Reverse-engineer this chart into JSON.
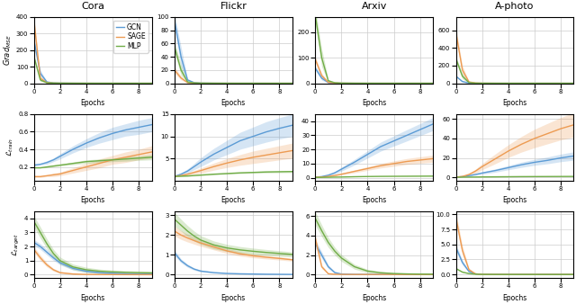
{
  "datasets": [
    "Cora",
    "Flickr",
    "Arxiv",
    "A-photo"
  ],
  "models": [
    "GCN",
    "SAGE",
    "MLP"
  ],
  "colors": [
    "#5B9BD5",
    "#ED9B52",
    "#70AD47"
  ],
  "epochs": [
    0,
    0.5,
    1,
    1.5,
    2,
    3,
    4,
    5,
    6,
    7,
    8,
    9
  ],
  "grad_mse": {
    "Cora": {
      "GCN": {
        "mean": [
          265,
          60,
          8,
          2,
          1,
          0.4,
          0.2,
          0.1,
          0.05,
          0.03,
          0.02,
          0.01
        ],
        "std": [
          15,
          20,
          4,
          1,
          0.5,
          0.2,
          0.1,
          0.05,
          0.02,
          0.01,
          0.01,
          0.005
        ]
      },
      "SAGE": {
        "mean": [
          390,
          30,
          4,
          1,
          0.5,
          0.2,
          0.1,
          0.05,
          0.03,
          0.02,
          0.01,
          0.008
        ],
        "std": [
          30,
          15,
          2,
          0.5,
          0.3,
          0.1,
          0.05,
          0.03,
          0.02,
          0.01,
          0.005,
          0.003
        ]
      },
      "MLP": {
        "mean": [
          165,
          20,
          3,
          1,
          0.5,
          0.2,
          0.1,
          0.05,
          0.03,
          0.02,
          0.01,
          0.008
        ],
        "std": [
          10,
          8,
          1,
          0.5,
          0.3,
          0.1,
          0.05,
          0.03,
          0.02,
          0.01,
          0.005,
          0.003
        ]
      },
      "ylim": [
        0,
        400
      ]
    },
    "Flickr": {
      "GCN": {
        "mean": [
          95,
          40,
          5,
          1,
          0.3,
          0.1,
          0.05,
          0.03,
          0.02,
          0.01,
          0.008,
          0.005
        ],
        "std": [
          10,
          15,
          2,
          0.5,
          0.15,
          0.05,
          0.02,
          0.01,
          0.01,
          0.005,
          0.003,
          0.002
        ]
      },
      "SAGE": {
        "mean": [
          20,
          8,
          1,
          0.3,
          0.1,
          0.05,
          0.02,
          0.01,
          0.008,
          0.005,
          0.003,
          0.002
        ],
        "std": [
          5,
          3,
          0.5,
          0.1,
          0.05,
          0.02,
          0.01,
          0.005,
          0.003,
          0.002,
          0.001,
          0.001
        ]
      },
      "MLP": {
        "mean": [
          55,
          20,
          2,
          0.5,
          0.15,
          0.05,
          0.02,
          0.01,
          0.008,
          0.005,
          0.003,
          0.002
        ],
        "std": [
          8,
          8,
          1,
          0.2,
          0.08,
          0.02,
          0.01,
          0.005,
          0.003,
          0.002,
          0.001,
          0.001
        ]
      },
      "ylim": [
        0,
        100
      ]
    },
    "Arxiv": {
      "GCN": {
        "mean": [
          60,
          20,
          3,
          0.8,
          0.3,
          0.1,
          0.05,
          0.03,
          0.02,
          0.01,
          0.008,
          0.005
        ],
        "std": [
          8,
          8,
          1.5,
          0.4,
          0.15,
          0.05,
          0.02,
          0.01,
          0.01,
          0.005,
          0.003,
          0.002
        ]
      },
      "SAGE": {
        "mean": [
          95,
          30,
          4,
          1,
          0.4,
          0.15,
          0.08,
          0.04,
          0.02,
          0.01,
          0.008,
          0.005
        ],
        "std": [
          10,
          10,
          2,
          0.5,
          0.2,
          0.08,
          0.04,
          0.02,
          0.01,
          0.005,
          0.003,
          0.002
        ]
      },
      "MLP": {
        "mean": [
          270,
          100,
          10,
          2,
          0.5,
          0.15,
          0.05,
          0.02,
          0.01,
          0.008,
          0.005,
          0.003
        ],
        "std": [
          30,
          35,
          5,
          1,
          0.25,
          0.08,
          0.02,
          0.01,
          0.005,
          0.003,
          0.002,
          0.001
        ]
      },
      "ylim": [
        0,
        260
      ]
    },
    "A-photo": {
      "GCN": {
        "mean": [
          80,
          20,
          2,
          0.5,
          0.2,
          0.08,
          0.04,
          0.02,
          0.01,
          0.008,
          0.005,
          0.003
        ],
        "std": [
          10,
          8,
          1,
          0.25,
          0.1,
          0.04,
          0.02,
          0.01,
          0.005,
          0.003,
          0.002,
          0.001
        ]
      },
      "SAGE": {
        "mean": [
          580,
          150,
          15,
          3,
          1,
          0.3,
          0.1,
          0.05,
          0.02,
          0.01,
          0.008,
          0.005
        ],
        "std": [
          60,
          50,
          8,
          1.5,
          0.5,
          0.15,
          0.05,
          0.02,
          0.01,
          0.005,
          0.003,
          0.002
        ]
      },
      "MLP": {
        "mean": [
          280,
          80,
          8,
          1.5,
          0.5,
          0.15,
          0.05,
          0.02,
          0.01,
          0.008,
          0.005,
          0.003
        ],
        "std": [
          30,
          30,
          4,
          0.8,
          0.25,
          0.08,
          0.02,
          0.01,
          0.005,
          0.003,
          0.002,
          0.001
        ]
      },
      "ylim": [
        0,
        750
      ]
    }
  },
  "l_train": {
    "Cora": {
      "GCN": {
        "mean": [
          0.22,
          0.23,
          0.25,
          0.28,
          0.32,
          0.4,
          0.47,
          0.53,
          0.58,
          0.62,
          0.65,
          0.68
        ],
        "std": [
          0.01,
          0.01,
          0.02,
          0.02,
          0.03,
          0.04,
          0.05,
          0.06,
          0.07,
          0.07,
          0.08,
          0.08
        ]
      },
      "SAGE": {
        "mean": [
          0.09,
          0.09,
          0.1,
          0.11,
          0.12,
          0.16,
          0.2,
          0.24,
          0.28,
          0.31,
          0.34,
          0.37
        ],
        "std": [
          0.01,
          0.01,
          0.01,
          0.02,
          0.02,
          0.03,
          0.04,
          0.05,
          0.05,
          0.06,
          0.06,
          0.07
        ]
      },
      "MLP": {
        "mean": [
          0.19,
          0.19,
          0.2,
          0.21,
          0.22,
          0.24,
          0.26,
          0.27,
          0.28,
          0.29,
          0.3,
          0.31
        ],
        "std": [
          0.005,
          0.005,
          0.008,
          0.01,
          0.01,
          0.015,
          0.02,
          0.02,
          0.02,
          0.025,
          0.025,
          0.03
        ]
      },
      "ylim": [
        null,
        0.8
      ]
    },
    "Flickr": {
      "GCN": {
        "mean": [
          1.0,
          1.5,
          2.2,
          3.2,
          4.2,
          6.0,
          7.5,
          9.0,
          10.0,
          11.0,
          11.8,
          12.5
        ],
        "std": [
          0.2,
          0.3,
          0.5,
          0.7,
          1.0,
          1.3,
          1.6,
          1.9,
          2.1,
          2.3,
          2.4,
          2.5
        ]
      },
      "SAGE": {
        "mean": [
          1.0,
          1.2,
          1.5,
          1.9,
          2.3,
          3.2,
          4.0,
          4.7,
          5.3,
          5.8,
          6.3,
          6.8
        ],
        "std": [
          0.1,
          0.2,
          0.3,
          0.4,
          0.6,
          0.8,
          1.0,
          1.2,
          1.4,
          1.5,
          1.6,
          1.7
        ]
      },
      "MLP": {
        "mean": [
          1.0,
          1.05,
          1.1,
          1.2,
          1.3,
          1.5,
          1.65,
          1.8,
          1.9,
          2.0,
          2.05,
          2.1
        ],
        "std": [
          0.05,
          0.05,
          0.08,
          0.1,
          0.12,
          0.15,
          0.17,
          0.18,
          0.2,
          0.22,
          0.23,
          0.25
        ]
      },
      "ylim": [
        null,
        15
      ]
    },
    "Arxiv": {
      "GCN": {
        "mean": [
          0.3,
          0.8,
          1.8,
          3.5,
          6.0,
          11.0,
          16.5,
          22.0,
          26.0,
          30.0,
          34.0,
          38.0
        ],
        "std": [
          0.05,
          0.2,
          0.5,
          0.9,
          1.4,
          2.0,
          2.6,
          3.2,
          3.6,
          4.0,
          4.3,
          4.6
        ]
      },
      "SAGE": {
        "mean": [
          0.3,
          0.5,
          0.9,
          1.6,
          2.5,
          4.5,
          6.5,
          8.5,
          10.0,
          11.5,
          12.5,
          13.5
        ],
        "std": [
          0.05,
          0.1,
          0.2,
          0.4,
          0.6,
          1.0,
          1.3,
          1.6,
          1.9,
          2.1,
          2.3,
          2.5
        ]
      },
      "MLP": {
        "mean": [
          0.2,
          0.25,
          0.3,
          0.4,
          0.5,
          0.7,
          0.85,
          0.95,
          1.0,
          1.05,
          1.1,
          1.15
        ],
        "std": [
          0.02,
          0.03,
          0.04,
          0.06,
          0.08,
          0.1,
          0.1,
          0.1,
          0.1,
          0.1,
          0.1,
          0.1
        ]
      },
      "ylim": [
        null,
        45
      ]
    },
    "A-photo": {
      "GCN": {
        "mean": [
          0.3,
          0.8,
          1.8,
          3.0,
          4.5,
          7.0,
          10.0,
          13.0,
          15.5,
          17.5,
          20.0,
          22.0
        ],
        "std": [
          0.05,
          0.2,
          0.5,
          0.8,
          1.2,
          1.7,
          2.2,
          2.7,
          3.1,
          3.5,
          3.9,
          4.3
        ]
      },
      "SAGE": {
        "mean": [
          0.3,
          1.0,
          3.0,
          6.5,
          11.0,
          19.0,
          27.0,
          34.0,
          40.0,
          45.0,
          50.0,
          54.0
        ],
        "std": [
          0.05,
          0.3,
          1.0,
          2.0,
          3.2,
          5.0,
          6.5,
          8.0,
          9.5,
          10.5,
          11.5,
          12.5
        ]
      },
      "MLP": {
        "mean": [
          0.2,
          0.25,
          0.3,
          0.4,
          0.5,
          0.6,
          0.7,
          0.8,
          0.85,
          0.9,
          0.95,
          1.0
        ],
        "std": [
          0.02,
          0.03,
          0.04,
          0.06,
          0.08,
          0.1,
          0.1,
          0.1,
          0.1,
          0.1,
          0.1,
          0.1
        ]
      },
      "ylim": [
        null,
        65
      ]
    }
  },
  "l_target": {
    "Cora": {
      "GCN": {
        "mean": [
          2.3,
          2.0,
          1.6,
          1.2,
          0.85,
          0.45,
          0.25,
          0.15,
          0.1,
          0.07,
          0.05,
          0.04
        ],
        "std": [
          0.2,
          0.2,
          0.2,
          0.18,
          0.15,
          0.12,
          0.1,
          0.08,
          0.06,
          0.05,
          0.04,
          0.03
        ]
      },
      "SAGE": {
        "mean": [
          1.8,
          1.2,
          0.7,
          0.35,
          0.15,
          0.05,
          0.02,
          0.01,
          0.008,
          0.005,
          0.003,
          0.002
        ],
        "std": [
          0.2,
          0.2,
          0.15,
          0.1,
          0.07,
          0.03,
          0.01,
          0.008,
          0.005,
          0.003,
          0.002,
          0.001
        ]
      },
      "MLP": {
        "mean": [
          3.8,
          3.0,
          2.2,
          1.5,
          1.0,
          0.55,
          0.35,
          0.25,
          0.2,
          0.17,
          0.15,
          0.13
        ],
        "std": [
          0.4,
          0.4,
          0.35,
          0.3,
          0.25,
          0.2,
          0.18,
          0.15,
          0.13,
          0.11,
          0.1,
          0.09
        ]
      },
      "ylim": [
        null,
        4.5
      ]
    },
    "Flickr": {
      "GCN": {
        "mean": [
          1.1,
          0.7,
          0.45,
          0.28,
          0.18,
          0.1,
          0.06,
          0.04,
          0.03,
          0.02,
          0.015,
          0.01
        ],
        "std": [
          0.15,
          0.1,
          0.08,
          0.06,
          0.05,
          0.03,
          0.02,
          0.015,
          0.012,
          0.01,
          0.008,
          0.006
        ]
      },
      "SAGE": {
        "mean": [
          2.2,
          2.0,
          1.85,
          1.72,
          1.6,
          1.4,
          1.2,
          1.05,
          0.95,
          0.88,
          0.82,
          0.75
        ],
        "std": [
          0.25,
          0.22,
          0.2,
          0.18,
          0.17,
          0.15,
          0.13,
          0.11,
          0.1,
          0.09,
          0.08,
          0.07
        ]
      },
      "MLP": {
        "mean": [
          2.8,
          2.5,
          2.2,
          1.95,
          1.75,
          1.5,
          1.35,
          1.25,
          1.18,
          1.12,
          1.07,
          1.02
        ],
        "std": [
          0.35,
          0.3,
          0.28,
          0.25,
          0.22,
          0.2,
          0.18,
          0.17,
          0.16,
          0.15,
          0.14,
          0.13
        ]
      },
      "ylim": [
        null,
        3.2
      ]
    },
    "Arxiv": {
      "GCN": {
        "mean": [
          3.2,
          2.0,
          0.8,
          0.2,
          0.05,
          0.01,
          0.005,
          0.003,
          0.002,
          0.001,
          0.001,
          0.001
        ],
        "std": [
          0.4,
          0.35,
          0.2,
          0.08,
          0.03,
          0.01,
          0.005,
          0.003,
          0.002,
          0.001,
          0.001,
          0.001
        ]
      },
      "SAGE": {
        "mean": [
          3.8,
          0.8,
          0.08,
          0.02,
          0.008,
          0.003,
          0.002,
          0.001,
          0.001,
          0.001,
          0.001,
          0.001
        ],
        "std": [
          0.4,
          0.2,
          0.04,
          0.01,
          0.005,
          0.002,
          0.001,
          0.001,
          0.001,
          0.001,
          0.001,
          0.001
        ]
      },
      "MLP": {
        "mean": [
          5.8,
          4.5,
          3.3,
          2.4,
          1.7,
          0.8,
          0.35,
          0.18,
          0.1,
          0.06,
          0.04,
          0.03
        ],
        "std": [
          0.7,
          0.6,
          0.5,
          0.4,
          0.35,
          0.25,
          0.18,
          0.12,
          0.08,
          0.05,
          0.03,
          0.02
        ]
      },
      "ylim": [
        null,
        6.5
      ]
    },
    "A-photo": {
      "GCN": {
        "mean": [
          4.5,
          2.0,
          0.5,
          0.1,
          0.02,
          0.005,
          0.002,
          0.001,
          0.001,
          0.001,
          0.001,
          0.001
        ],
        "std": [
          0.6,
          0.4,
          0.15,
          0.04,
          0.01,
          0.003,
          0.001,
          0.001,
          0.001,
          0.001,
          0.001,
          0.001
        ]
      },
      "SAGE": {
        "mean": [
          9.5,
          4.0,
          0.8,
          0.1,
          0.02,
          0.005,
          0.002,
          0.001,
          0.001,
          0.001,
          0.001,
          0.001
        ],
        "std": [
          1.0,
          0.8,
          0.25,
          0.05,
          0.01,
          0.003,
          0.001,
          0.001,
          0.001,
          0.001,
          0.001,
          0.001
        ]
      },
      "MLP": {
        "mean": [
          1.0,
          0.4,
          0.15,
          0.06,
          0.02,
          0.008,
          0.004,
          0.002,
          0.001,
          0.001,
          0.001,
          0.001
        ],
        "std": [
          0.15,
          0.1,
          0.06,
          0.02,
          0.008,
          0.003,
          0.002,
          0.001,
          0.001,
          0.001,
          0.001,
          0.001
        ]
      },
      "ylim": [
        null,
        10.5
      ]
    }
  }
}
